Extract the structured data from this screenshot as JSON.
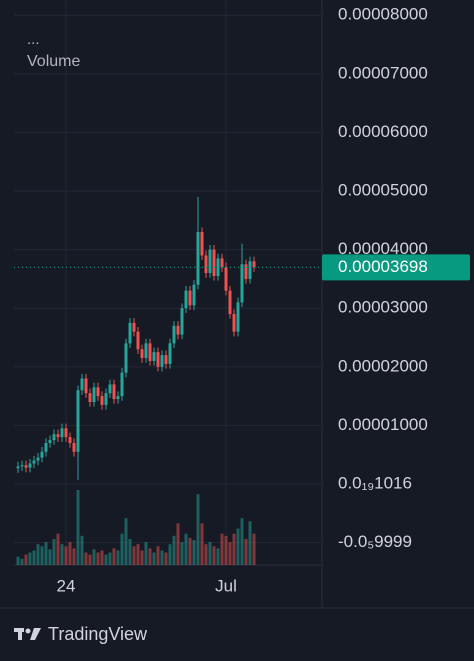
{
  "chart_data": {
    "type": "candlestick",
    "indicator_menu": "...",
    "volume_label": "Volume",
    "brand": "TradingView",
    "categories": [
      null,
      null,
      null,
      null,
      null,
      null,
      null,
      null,
      null,
      null,
      null,
      null,
      "24",
      null,
      null,
      null,
      null,
      null,
      null,
      null,
      null,
      null,
      null,
      null,
      null,
      null,
      null,
      null,
      null,
      null,
      null,
      null,
      null,
      null,
      null,
      null,
      null,
      null,
      null,
      null,
      null,
      null,
      null,
      null,
      null,
      null,
      null,
      null,
      null,
      null,
      null,
      null,
      "Jul",
      null,
      null,
      null,
      null,
      null,
      null,
      null
    ],
    "open": [
      2.7e-06,
      3e-06,
      3.2e-06,
      2.8e-06,
      3.5e-06,
      4e-06,
      4.5e-06,
      5.5e-06,
      7e-06,
      7.5e-06,
      8.5e-06,
      8e-06,
      9.5e-06,
      8e-06,
      7e-06,
      5.5e-06,
      1.6e-05,
      1.8e-05,
      1.55e-05,
      1.4e-05,
      1.65e-05,
      1.5e-05,
      1.35e-05,
      1.55e-05,
      1.7e-05,
      1.45e-05,
      1.5e-05,
      1.9e-05,
      2.4e-05,
      2.75e-05,
      2.6e-05,
      2.3e-05,
      2.15e-05,
      2.4e-05,
      2.1e-05,
      2.25e-05,
      2e-05,
      2.2e-05,
      2.05e-05,
      2.4e-05,
      2.7e-05,
      2.55e-05,
      3e-05,
      3.3e-05,
      3.05e-05,
      3.4e-05,
      4.3e-05,
      3.9e-05,
      3.6e-05,
      4e-05,
      3.55e-05,
      3.85e-05,
      3.7e-05,
      3.3e-05,
      2.9e-05,
      2.6e-05,
      3.1e-05,
      3.75e-05,
      3.5e-05,
      3.8e-05
    ],
    "high": [
      3.8e-06,
      4e-06,
      4e-06,
      4.3e-06,
      4.8e-06,
      5.3e-06,
      6.3e-06,
      7.8e-06,
      8.3e-06,
      9.3e-06,
      9.3e-06,
      1.03e-05,
      1.03e-05,
      8.8e-06,
      7.8e-06,
      1.68e-05,
      1.88e-05,
      1.88e-05,
      1.63e-05,
      1.73e-05,
      1.73e-05,
      1.58e-05,
      1.63e-05,
      1.78e-05,
      1.78e-05,
      1.58e-05,
      1.98e-05,
      2.48e-05,
      2.83e-05,
      2.83e-05,
      2.68e-05,
      2.38e-05,
      2.48e-05,
      2.48e-05,
      2.33e-05,
      2.33e-05,
      2.28e-05,
      2.28e-05,
      2.48e-05,
      2.78e-05,
      2.78e-05,
      3.08e-05,
      3.38e-05,
      3.38e-05,
      3.48e-05,
      4.9e-05,
      4.38e-05,
      3.98e-05,
      4.08e-05,
      4.08e-05,
      3.93e-05,
      3.93e-05,
      3.78e-05,
      3.38e-05,
      2.98e-05,
      3.18e-05,
      4.1e-05,
      3.83e-05,
      3.88e-05,
      3.88e-05
    ],
    "low": [
      1.9e-06,
      2.2e-06,
      2e-06,
      2e-06,
      2.7e-06,
      3.2e-06,
      3.7e-06,
      4.7e-06,
      6.2e-06,
      6.7e-06,
      7.2e-06,
      7.2e-06,
      7.2e-06,
      6.2e-06,
      4.7e-06,
      7e-07,
      1.52e-05,
      1.47e-05,
      1.32e-05,
      1.32e-05,
      1.42e-05,
      1.27e-05,
      1.27e-05,
      1.47e-05,
      1.37e-05,
      1.37e-05,
      1.42e-05,
      1.82e-05,
      2.32e-05,
      2.52e-05,
      2.22e-05,
      2.07e-05,
      2.07e-05,
      2.02e-05,
      2.02e-05,
      1.92e-05,
      1.92e-05,
      1.97e-05,
      1.97e-05,
      2.32e-05,
      2.47e-05,
      2.47e-05,
      2.92e-05,
      2.97e-05,
      2.97e-05,
      3.32e-05,
      3.82e-05,
      3.52e-05,
      3.52e-05,
      3.47e-05,
      3.47e-05,
      3.62e-05,
      3.22e-05,
      2.82e-05,
      2.52e-05,
      2.52e-05,
      3.02e-05,
      3.42e-05,
      3.42e-05,
      3.62e-05
    ],
    "close": [
      3e-06,
      3.2e-06,
      2.8e-06,
      3.5e-06,
      4e-06,
      4.5e-06,
      5.5e-06,
      7e-06,
      7.5e-06,
      8.5e-06,
      8e-06,
      9.5e-06,
      8e-06,
      7e-06,
      5.5e-06,
      1.6e-05,
      1.8e-05,
      1.55e-05,
      1.4e-05,
      1.65e-05,
      1.5e-05,
      1.35e-05,
      1.55e-05,
      1.7e-05,
      1.45e-05,
      1.5e-05,
      1.9e-05,
      2.4e-05,
      2.75e-05,
      2.6e-05,
      2.3e-05,
      2.15e-05,
      2.4e-05,
      2.1e-05,
      2.25e-05,
      2e-05,
      2.2e-05,
      2.05e-05,
      2.4e-05,
      2.7e-05,
      2.55e-05,
      3e-05,
      3.3e-05,
      3.05e-05,
      3.4e-05,
      4.3e-05,
      3.9e-05,
      3.6e-05,
      4e-05,
      3.55e-05,
      3.85e-05,
      3.7e-05,
      3.3e-05,
      2.9e-05,
      2.6e-05,
      3.1e-05,
      3.75e-05,
      3.5e-05,
      3.8e-05,
      3.698e-05
    ],
    "volume": [
      8,
      6,
      10,
      12,
      14,
      20,
      18,
      22,
      15,
      25,
      30,
      20,
      18,
      22,
      16,
      72,
      28,
      12,
      10,
      15,
      12,
      14,
      10,
      12,
      16,
      14,
      30,
      45,
      25,
      18,
      20,
      14,
      22,
      16,
      12,
      18,
      14,
      12,
      20,
      28,
      40,
      22,
      30,
      26,
      24,
      68,
      40,
      20,
      22,
      18,
      16,
      30,
      28,
      22,
      30,
      35,
      45,
      25,
      42,
      30
    ],
    "up_color": "#26a69a",
    "down_color": "#ef5350",
    "ylim": [
      -1.382e-05,
      8.26e-05
    ],
    "yticks": [
      {
        "value": 8e-05,
        "label": "0.00008000"
      },
      {
        "value": 7e-05,
        "label": "0.00007000"
      },
      {
        "value": 6e-05,
        "label": "0.00006000"
      },
      {
        "value": 5e-05,
        "label": "0.00005000"
      },
      {
        "value": 4e-05,
        "label": "0.00004000"
      },
      {
        "value": 3e-05,
        "label": "0.00003000"
      },
      {
        "value": 2e-05,
        "label": "0.00002000"
      },
      {
        "value": 1e-05,
        "label": "0.00001000"
      },
      {
        "value": 1.016e-20,
        "label": "0.0₁₉1016"
      },
      {
        "value": -9.999e-06,
        "label": "-0.0₅9999"
      }
    ],
    "last_price": {
      "value": 3.698e-05,
      "label": "0.00003698"
    },
    "last_price_color": "#089981",
    "grid": true
  }
}
